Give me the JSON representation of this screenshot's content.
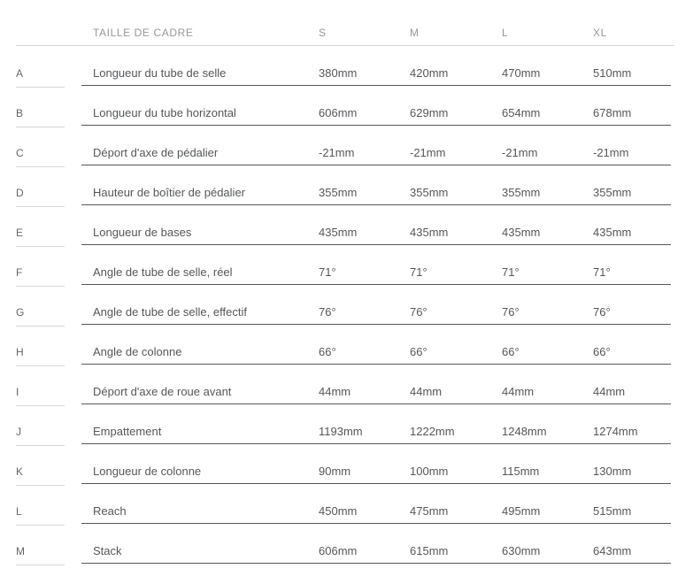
{
  "table": {
    "header": {
      "label": "TAILLE DE CADRE",
      "sizes": [
        "S",
        "M",
        "L",
        "XL"
      ]
    },
    "rows": [
      {
        "letter": "A",
        "label": "Longueur du tube de selle",
        "values": [
          "380mm",
          "420mm",
          "470mm",
          "510mm"
        ]
      },
      {
        "letter": "B",
        "label": "Longueur du tube horizontal",
        "values": [
          "606mm",
          "629mm",
          "654mm",
          "678mm"
        ]
      },
      {
        "letter": "C",
        "label": "Déport d'axe de pédalier",
        "values": [
          "-21mm",
          "-21mm",
          "-21mm",
          "-21mm"
        ]
      },
      {
        "letter": "D",
        "label": "Hauteur de boîtier de pédalier",
        "values": [
          "355mm",
          "355mm",
          "355mm",
          "355mm"
        ]
      },
      {
        "letter": "E",
        "label": "Longueur de bases",
        "values": [
          "435mm",
          "435mm",
          "435mm",
          "435mm"
        ]
      },
      {
        "letter": "F",
        "label": "Angle de tube de selle, réel",
        "values": [
          "71°",
          "71°",
          "71°",
          "71°"
        ]
      },
      {
        "letter": "G",
        "label": "Angle de tube de selle, effectif",
        "values": [
          "76°",
          "76°",
          "76°",
          "76°"
        ]
      },
      {
        "letter": "H",
        "label": "Angle de colonne",
        "values": [
          "66°",
          "66°",
          "66°",
          "66°"
        ]
      },
      {
        "letter": "I",
        "label": "Déport d'axe de roue avant",
        "values": [
          "44mm",
          "44mm",
          "44mm",
          "44mm"
        ]
      },
      {
        "letter": "J",
        "label": "Empattement",
        "values": [
          "1193mm",
          "1222mm",
          "1248mm",
          "1274mm"
        ]
      },
      {
        "letter": "K",
        "label": "Longueur de colonne",
        "values": [
          "90mm",
          "100mm",
          "115mm",
          "130mm"
        ]
      },
      {
        "letter": "L",
        "label": "Reach",
        "values": [
          "450mm",
          "475mm",
          "495mm",
          "515mm"
        ]
      },
      {
        "letter": "M",
        "label": "Stack",
        "values": [
          "606mm",
          "615mm",
          "630mm",
          "643mm"
        ]
      }
    ],
    "colors": {
      "text": "#54575a",
      "letter_text": "#636669",
      "header_text": "#95989a",
      "rule_dark": "#55585a",
      "rule_light": "#d7d7d7",
      "background": "#ffffff"
    }
  }
}
